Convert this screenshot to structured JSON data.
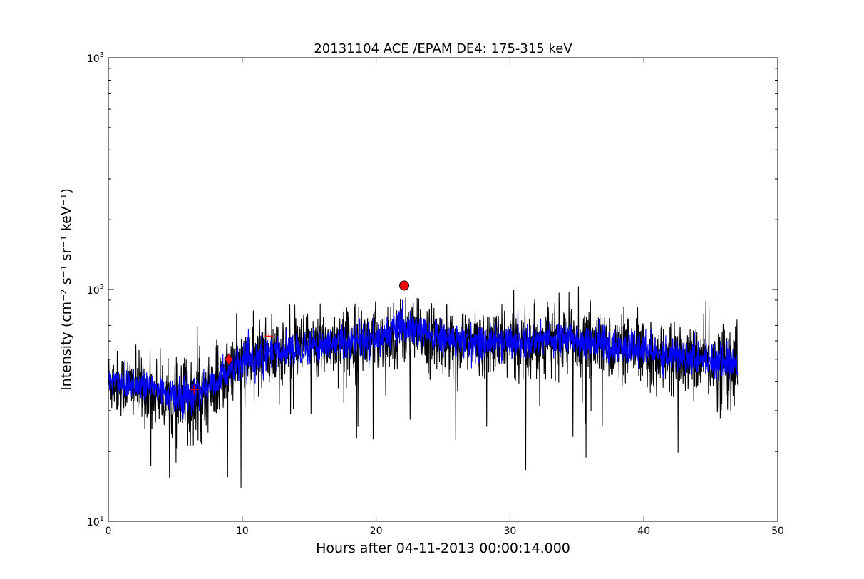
{
  "chart_data": {
    "type": "line",
    "title": "20131104 ACE /EPAM DE4: 175-315 keV",
    "xlabel": "Hours after 04-11-2013 00:00:14.000",
    "ylabel": "Intensity (cm⁻² s⁻¹ sr⁻¹ keV⁻¹)",
    "xlim": [
      0,
      50
    ],
    "ylim": [
      10,
      1000
    ],
    "yscale": "log",
    "grid": false,
    "x_ticks": [
      0,
      10,
      20,
      30,
      40,
      50
    ],
    "x_tick_labels": [
      "0",
      "10",
      "20",
      "30",
      "40",
      "50"
    ],
    "y_major_ticks": [
      10,
      100,
      1000
    ],
    "y_tick_labels": [
      {
        "base": "10",
        "exp": "1"
      },
      {
        "base": "10",
        "exp": "2"
      },
      {
        "base": "10",
        "exp": "3"
      }
    ],
    "series": [
      {
        "color": "#000000",
        "style": "noisy-line",
        "x": [
          0,
          2,
          4,
          5,
          6,
          7,
          8,
          9,
          10,
          12,
          14,
          16,
          18,
          20,
          22,
          24,
          26,
          28,
          30,
          32,
          34,
          36,
          38,
          40,
          42,
          44,
          46,
          47
        ],
        "y": [
          40,
          38,
          35,
          31,
          33,
          35,
          39,
          45,
          48,
          52,
          56,
          58,
          60,
          61,
          66,
          62,
          60,
          58,
          59,
          60,
          61,
          59,
          55,
          53,
          51,
          50,
          48,
          47
        ]
      },
      {
        "color": "#0000ff",
        "style": "noisy-line",
        "x": [
          0,
          2,
          4,
          5,
          6,
          7,
          8,
          9,
          10,
          12,
          14,
          16,
          18,
          20,
          22,
          24,
          26,
          28,
          30,
          32,
          34,
          36,
          38,
          40,
          42,
          44,
          46,
          47
        ],
        "y": [
          41,
          39,
          37,
          34,
          35,
          37,
          40,
          45,
          48,
          52,
          56,
          58,
          60,
          62,
          68,
          63,
          60,
          59,
          60,
          61,
          62,
          60,
          56,
          54,
          52,
          51,
          49,
          48
        ]
      }
    ],
    "markers": [
      {
        "shape": "plus",
        "x": 6.4,
        "y": 37,
        "color": "#ff0000"
      },
      {
        "shape": "diamond",
        "x": 9.0,
        "y": 50,
        "color": "#ff0000"
      },
      {
        "shape": "plus",
        "x": 12.0,
        "y": 63,
        "color": "#ff0000"
      },
      {
        "shape": "circle",
        "x": 22.1,
        "y": 104,
        "color": "#ff0000"
      }
    ]
  }
}
